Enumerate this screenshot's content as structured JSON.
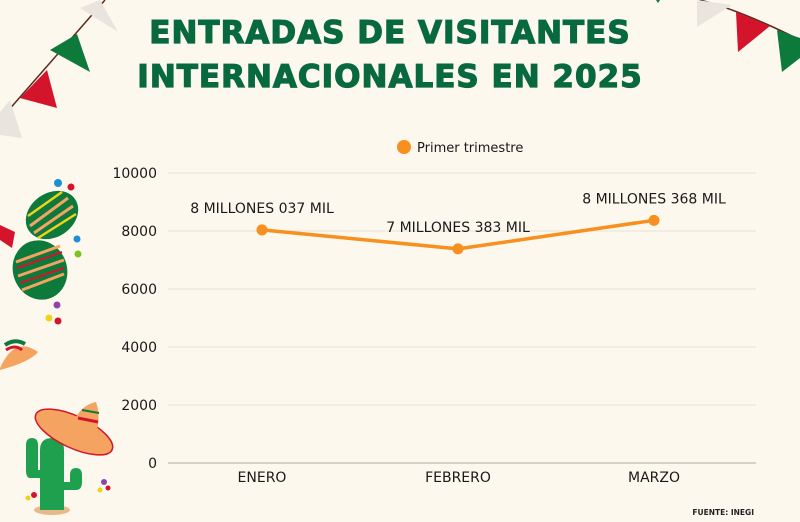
{
  "title": {
    "line1": "ENTRADAS DE VISITANTES",
    "line2": "INTERNACIONALES EN 2025"
  },
  "source": "FUENTE: INEGI",
  "colors": {
    "title": "#08693f",
    "series": "#f7901e",
    "grid": "#e6e2d8",
    "background": "#fdf8ee"
  },
  "chart_data": {
    "type": "line",
    "title": "ENTRADAS DE VISITANTES INTERNACIONALES EN 2025",
    "categories": [
      "ENERO",
      "FEBRERO",
      "MARZO"
    ],
    "series": [
      {
        "name": "Primer trimestre",
        "values": [
          8037,
          7383,
          8368
        ],
        "data_labels": [
          "8 MILLONES 037 MIL",
          "7 MILLONES 383 MIL",
          "8 MILLONES 368 MIL"
        ]
      }
    ],
    "xlabel": "",
    "ylabel": "",
    "ylim": [
      0,
      10000
    ],
    "yticks": [
      0,
      2000,
      4000,
      6000,
      8000,
      10000
    ],
    "grid": true,
    "legend": "top-center"
  }
}
